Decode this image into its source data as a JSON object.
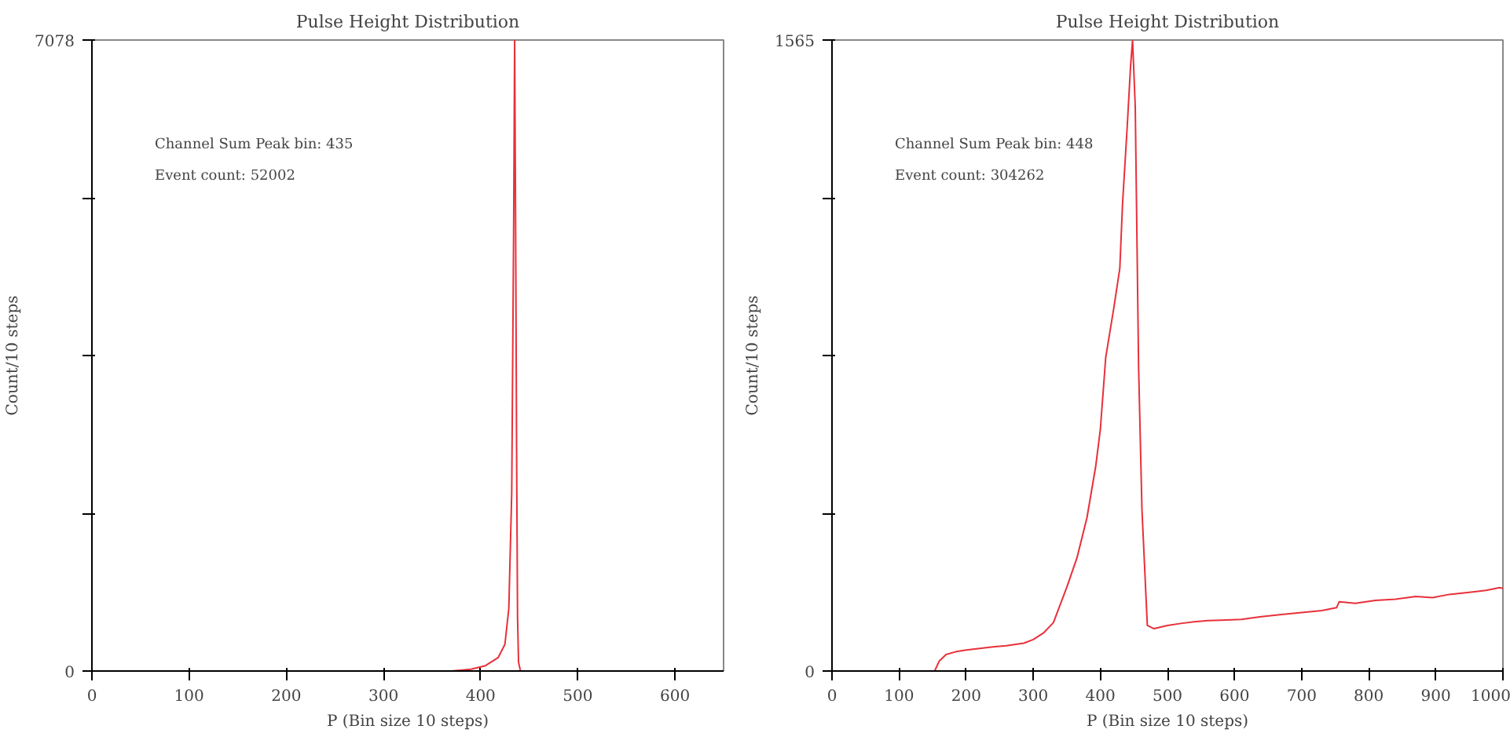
{
  "chart_data": [
    {
      "type": "line",
      "title": "Pulse Height Distribution",
      "xlabel": "P (Bin size 10 steps)",
      "ylabel": "Count/10 steps",
      "x": [
        0,
        370,
        390,
        405,
        418,
        425,
        429,
        432,
        434,
        435,
        436,
        437,
        438,
        439,
        441,
        460,
        650
      ],
      "series": [
        {
          "color": "#e8303a",
          "values": [
            0,
            0,
            20,
            60,
            150,
            300,
            700,
            2000,
            5000,
            7078,
            5000,
            2500,
            600,
            100,
            0,
            0,
            0
          ]
        }
      ],
      "xlim": [
        0,
        650
      ],
      "xticks": [
        0,
        100,
        200,
        300,
        400,
        500,
        600
      ],
      "ylim": [
        0,
        7078
      ],
      "yticks": [
        0,
        {
          "value": 1769.5,
          "label": null
        },
        {
          "value": 3539,
          "label": null
        },
        {
          "value": 5308.5,
          "label": null
        },
        7078
      ],
      "annotations": [
        "Channel Sum Peak bin: 435",
        "Event count: 52002"
      ],
      "grid": false
    },
    {
      "type": "line",
      "title": "Pulse Height Distribution",
      "xlabel": "P (Bin size 10 steps)",
      "ylabel": "Count/10 steps",
      "x": [
        153,
        160,
        170,
        185,
        200,
        220,
        240,
        260,
        286,
        300,
        315,
        330,
        350,
        365,
        380,
        393,
        400,
        408,
        420,
        429,
        433,
        440,
        445,
        448,
        452,
        457,
        462,
        470,
        480,
        500,
        520,
        540,
        560,
        580,
        610,
        640,
        670,
        700,
        730,
        752,
        756,
        780,
        810,
        840,
        870,
        895,
        920,
        950,
        975,
        995,
        1000
      ],
      "series": [
        {
          "color": "#e8303a",
          "values": [
            0,
            25,
            41,
            48,
            52,
            56,
            60,
            63,
            69,
            78,
            94,
            120,
            208,
            280,
            380,
            507,
            600,
            778,
            900,
            999,
            1157,
            1350,
            1500,
            1565,
            1400,
            753,
            400,
            113,
            105,
            113,
            118,
            122,
            125,
            126,
            128,
            135,
            140,
            145,
            150,
            157,
            172,
            168,
            175,
            178,
            185,
            182,
            190,
            195,
            200,
            207,
            205
          ]
        }
      ],
      "xlim": [
        0,
        1000
      ],
      "xticks": [
        0,
        100,
        200,
        300,
        400,
        500,
        600,
        700,
        800,
        900,
        1000
      ],
      "ylim": [
        0,
        1565
      ],
      "yticks": [
        0,
        {
          "value": 391.25,
          "label": null
        },
        {
          "value": 782.5,
          "label": null
        },
        {
          "value": 1173.75,
          "label": null
        },
        1565
      ],
      "annotations": [
        "Channel Sum Peak bin: 448",
        "Event count: 304262"
      ],
      "grid": false
    }
  ]
}
